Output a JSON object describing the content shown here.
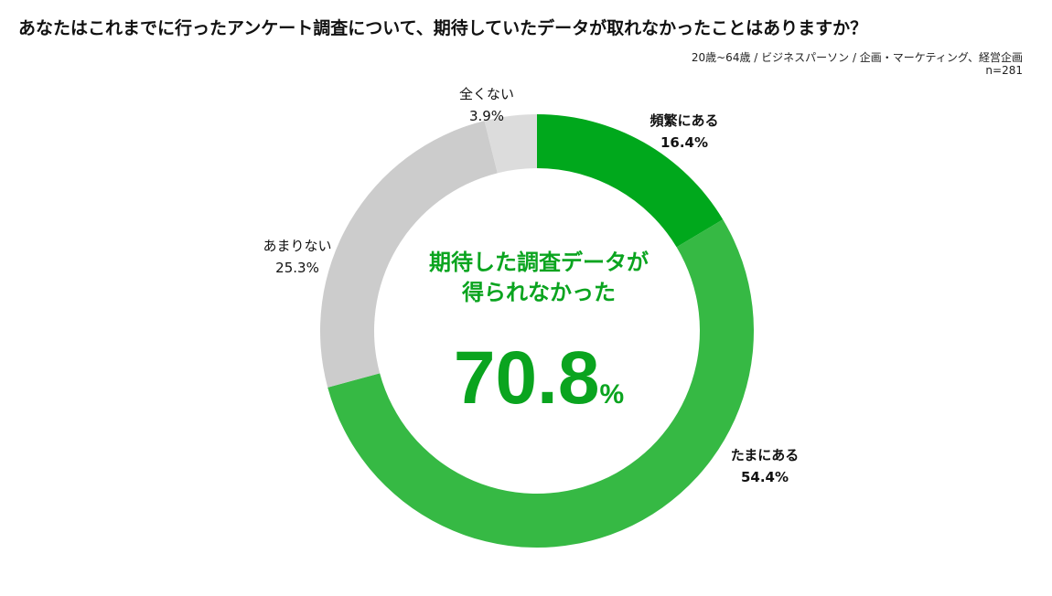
{
  "title": "あなたはこれまでに行ったアンケート調査について、期待していたデータが取れなかったことはありますか？",
  "meta": {
    "respondents": "20歳~64歳 / ビジネスパーソン / 企画・マーケティング、経営企画",
    "sample": "n=281"
  },
  "colors": {
    "dark_green": "#00a81c",
    "green": "#36b944",
    "light_gray": "#dcdcdc",
    "gray": "#cccccc",
    "center_text": "#0aa41f"
  },
  "center": {
    "caption_line1": "期待した調査データが",
    "caption_line2": "得られなかった",
    "value": "70.8",
    "unit": "%"
  },
  "chart_data": {
    "type": "pie",
    "title": "",
    "series": [
      {
        "slices": [
          {
            "label": "頻繁にある",
            "value": 16.4,
            "display": "16.4%",
            "color": "#00a81c",
            "bold": true
          },
          {
            "label": "たまにある",
            "value": 54.4,
            "display": "54.4%",
            "color": "#36b944",
            "bold": true
          },
          {
            "label": "あまりない",
            "value": 25.3,
            "display": "25.3%",
            "color": "#cccccc",
            "bold": false
          },
          {
            "label": "全くない",
            "value": 3.9,
            "display": "3.9%",
            "color": "#dcdcdc",
            "bold": false
          }
        ]
      }
    ]
  }
}
